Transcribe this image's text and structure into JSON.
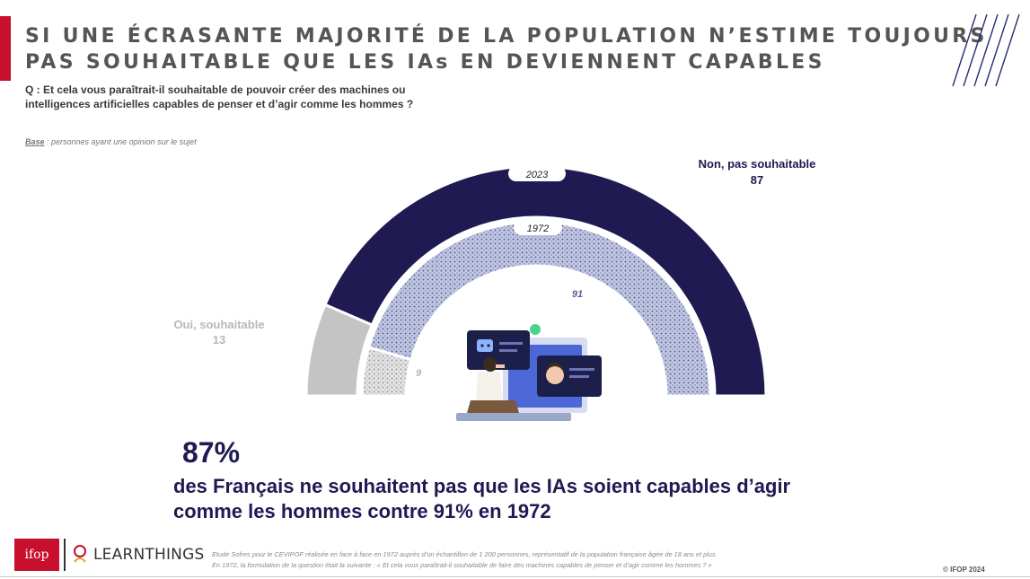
{
  "header": {
    "title_line1": "SI UNE ÉCRASANTE MAJORITÉ DE LA POPULATION N’ESTIME TOUJOURS",
    "title_line2": "PAS SOUHAITABLE QUE LES IAs EN DEVIENNENT CAPABLES",
    "question_line1": "Q : Et cela vous paraîtrait-il souhaitable de pouvoir créer des machines ou",
    "question_line2": "intelligences artificielles capables de penser et d’agir comme les hommes ?",
    "base_label": "Base",
    "base_text": " : personnes ayant une opinion sur le sujet"
  },
  "chart_data": {
    "type": "pie",
    "subtype": "nested semi-donut",
    "series": [
      {
        "name": "2023",
        "values": [
          13,
          87
        ]
      },
      {
        "name": "1972",
        "values": [
          9,
          91
        ]
      }
    ],
    "categories": [
      "Oui, souhaitable",
      "Non, pas souhaitable"
    ],
    "legend": {
      "oui_label": "Oui, souhaitable",
      "oui_value": "13",
      "non_label": "Non, pas souhaitable",
      "non_value": "87"
    },
    "data_labels": {
      "oui_1972": "9",
      "non_1972": "91"
    },
    "colors": {
      "non": "#1f1a52",
      "oui": "#c4c4c4",
      "non_1972": "#9aa0c4",
      "oui_1972": "#b8b8b8"
    }
  },
  "highlight": {
    "pct": "87%",
    "line1": "des Français ne souhaitent pas que les IAs soient capables d’agir",
    "line2": "comme les hommes contre 91% en 1972"
  },
  "footer": {
    "ifop_logo": "ifop",
    "learnthings_logo": "LEARNTHINGS",
    "note_line1": "Etude Sofres pour le CEVIPOF réalisée en face à face en 1972 auprès d’un échantillon de 1 200 personnes, représentatif de la population française âgée de 18 ans et plus.",
    "note_line2": "En 1972, la formulation de la question était la suivante : « Et cela vous paraîtrait-il souhaitable de faire des machines capables de penser et d’agir comme les hommes ? »",
    "copyright": "© IFOP 2024"
  }
}
